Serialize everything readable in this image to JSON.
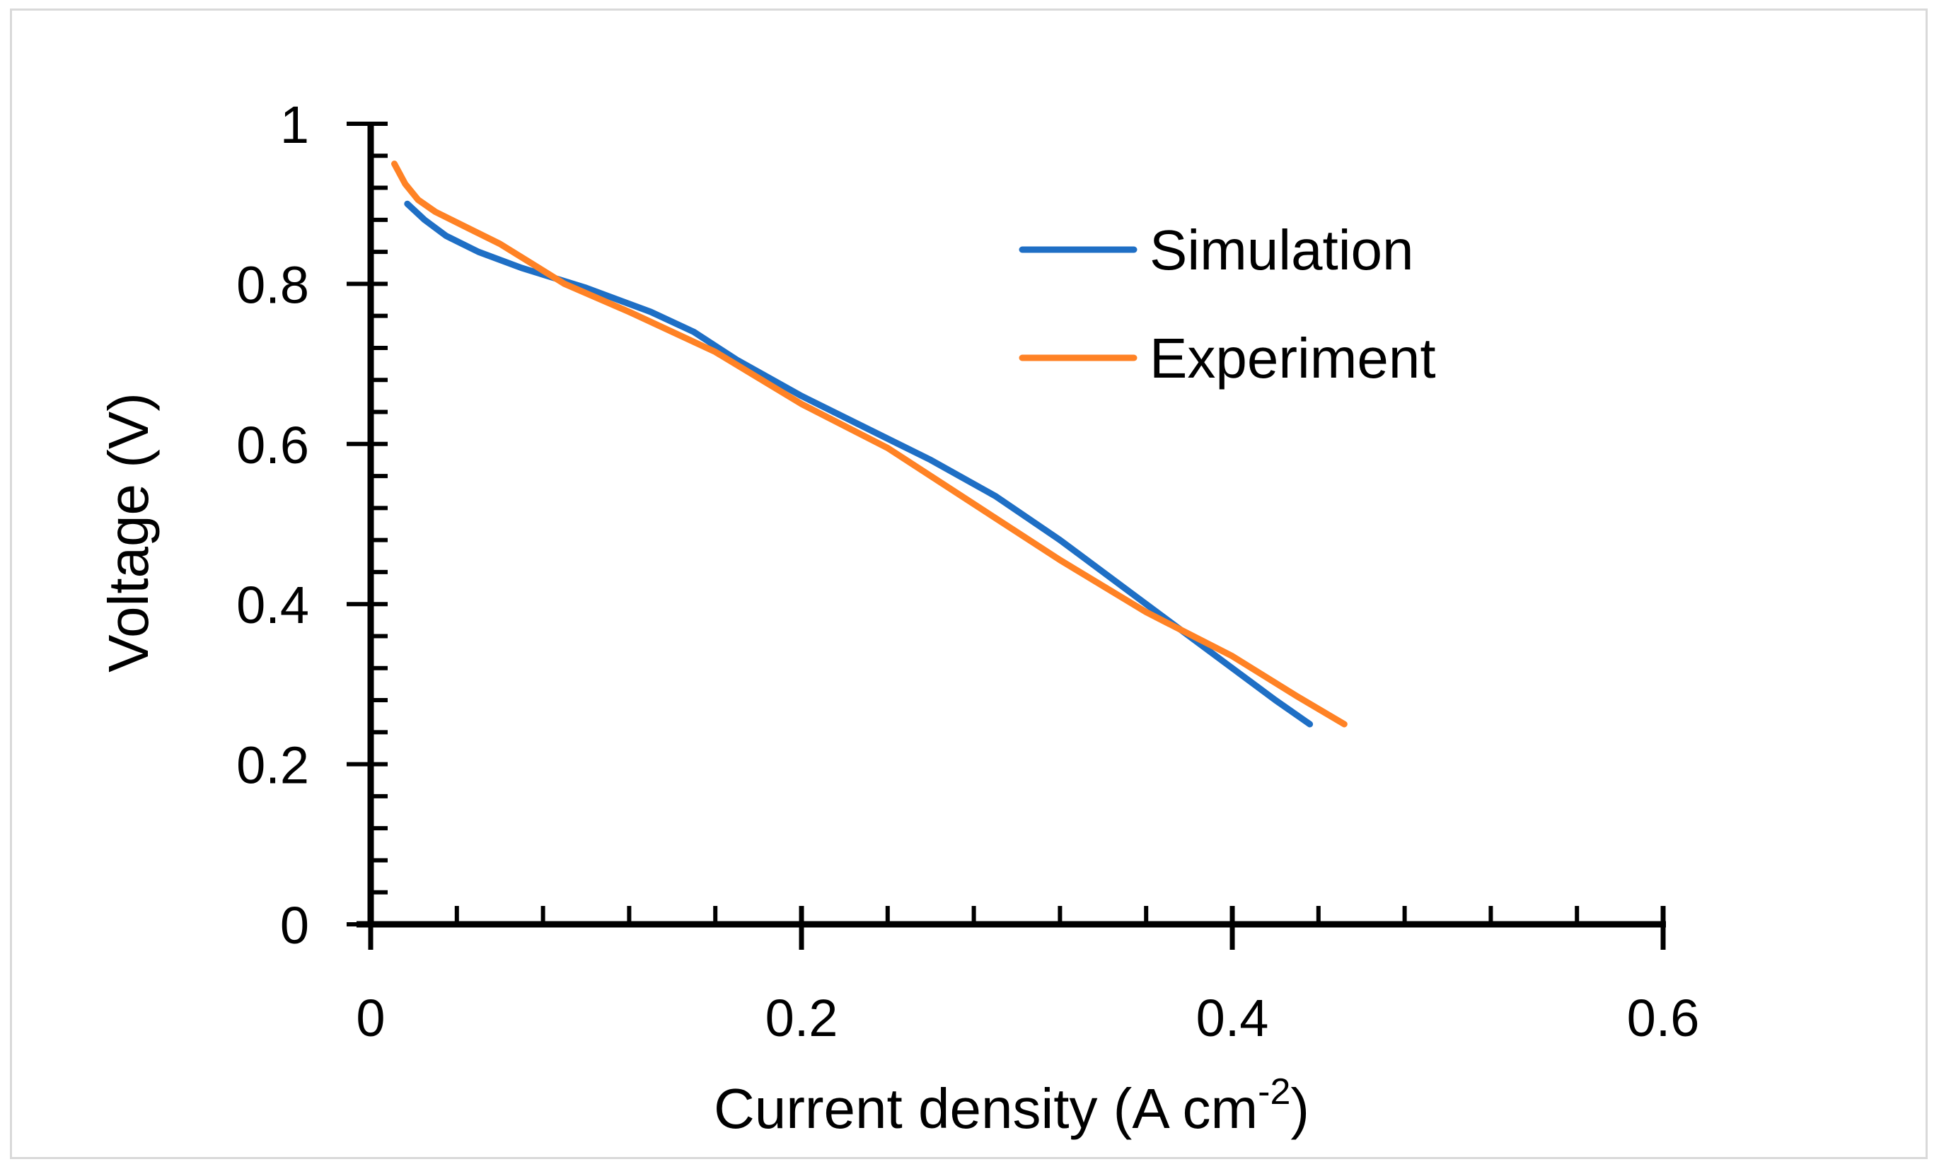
{
  "chart_data": {
    "type": "line",
    "title": "",
    "xlabel": "Current density (A cm",
    "xlabel_superscript": "-2",
    "xlabel_close": ")",
    "ylabel": "Voltage (V)",
    "xlim": [
      0,
      0.6
    ],
    "ylim": [
      0,
      1
    ],
    "xticks": [
      0,
      0.2,
      0.4,
      0.6
    ],
    "xtick_labels": [
      "0",
      "0.2",
      "0.4",
      "0.6"
    ],
    "yticks": [
      0,
      0.2,
      0.4,
      0.6,
      0.8,
      1
    ],
    "ytick_labels": [
      "0",
      "0.2",
      "0.4",
      "0.6",
      "0.8",
      "1"
    ],
    "x_minor_step": 0.04,
    "y_minor_step": 0.04,
    "grid": false,
    "legend_position": "top-right",
    "series": [
      {
        "name": "Simulation",
        "color": "#1f6fc5",
        "x": [
          0.017,
          0.025,
          0.035,
          0.05,
          0.07,
          0.1,
          0.13,
          0.15,
          0.17,
          0.2,
          0.23,
          0.26,
          0.29,
          0.32,
          0.35,
          0.38,
          0.4,
          0.42,
          0.436
        ],
        "y": [
          0.9,
          0.88,
          0.86,
          0.84,
          0.82,
          0.795,
          0.765,
          0.74,
          0.705,
          0.66,
          0.62,
          0.58,
          0.535,
          0.48,
          0.42,
          0.36,
          0.32,
          0.28,
          0.25
        ]
      },
      {
        "name": "Experiment",
        "color": "#ff8225",
        "x": [
          0.011,
          0.016,
          0.022,
          0.03,
          0.045,
          0.06,
          0.075,
          0.09,
          0.12,
          0.16,
          0.2,
          0.24,
          0.28,
          0.32,
          0.36,
          0.4,
          0.43,
          0.452
        ],
        "y": [
          0.95,
          0.925,
          0.905,
          0.89,
          0.87,
          0.85,
          0.825,
          0.8,
          0.765,
          0.715,
          0.65,
          0.595,
          0.525,
          0.455,
          0.39,
          0.335,
          0.285,
          0.25
        ]
      }
    ]
  }
}
